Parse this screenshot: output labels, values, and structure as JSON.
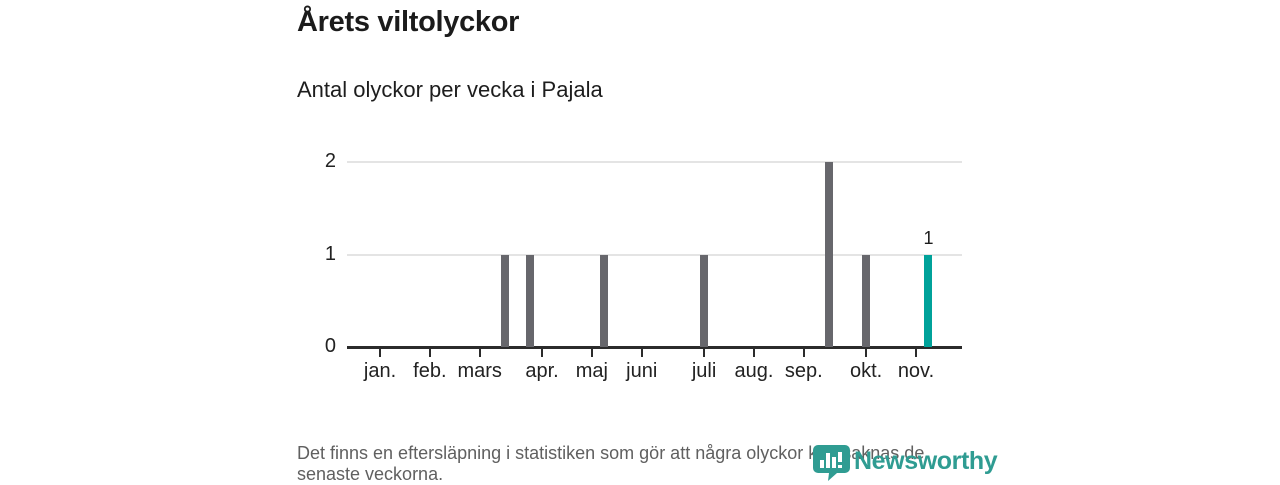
{
  "chart_data": {
    "type": "bar",
    "title": "Årets viltolyckor",
    "subtitle": "Antal olyckor per vecka i Pajala",
    "x_unit": "vecka (week number)",
    "weeks": [
      1,
      2,
      3,
      4,
      5,
      6,
      7,
      8,
      9,
      10,
      11,
      12,
      13,
      14,
      15,
      16,
      17,
      18,
      19,
      20,
      21,
      22,
      23,
      24,
      25,
      26,
      27,
      28,
      29,
      30,
      31,
      32,
      33,
      34,
      35,
      36,
      37,
      38,
      39,
      40,
      41,
      42,
      43,
      44,
      45
    ],
    "values": [
      0,
      0,
      0,
      0,
      0,
      0,
      0,
      0,
      0,
      0,
      1,
      0,
      1,
      0,
      0,
      0,
      0,
      0,
      1,
      0,
      0,
      0,
      0,
      0,
      0,
      0,
      1,
      0,
      0,
      0,
      0,
      0,
      0,
      0,
      0,
      0,
      2,
      0,
      0,
      1,
      0,
      0,
      0,
      0,
      1
    ],
    "highlight_week": 45,
    "highlight_value_label": "1",
    "ylim": [
      0,
      2
    ],
    "yticks": [
      0,
      1,
      2
    ],
    "grid": "horizontal only",
    "legend": "none",
    "month_ticks": [
      {
        "label": "jan.",
        "week": 1
      },
      {
        "label": "feb.",
        "week": 5
      },
      {
        "label": "mars",
        "week": 9
      },
      {
        "label": "apr.",
        "week": 14
      },
      {
        "label": "maj",
        "week": 18
      },
      {
        "label": "juni",
        "week": 22
      },
      {
        "label": "juli",
        "week": 27
      },
      {
        "label": "aug.",
        "week": 31
      },
      {
        "label": "sep.",
        "week": 35
      },
      {
        "label": "okt.",
        "week": 40
      },
      {
        "label": "nov.",
        "week": 44
      }
    ],
    "colors": {
      "bar": "#67676c",
      "highlight": "#00a29a",
      "grid": "#e4e4e4",
      "axis": "#2b2b2b"
    }
  },
  "footer": {
    "lines": [
      "Det finns en eftersläpning i statistiken som gör att några olyckor kan saknas de",
      "senaste veckorna."
    ]
  },
  "logo": {
    "text": "Newsworthy",
    "color": "#2f9c92",
    "icon": "newsworthy-speech-bubble-bar-chart-icon"
  }
}
